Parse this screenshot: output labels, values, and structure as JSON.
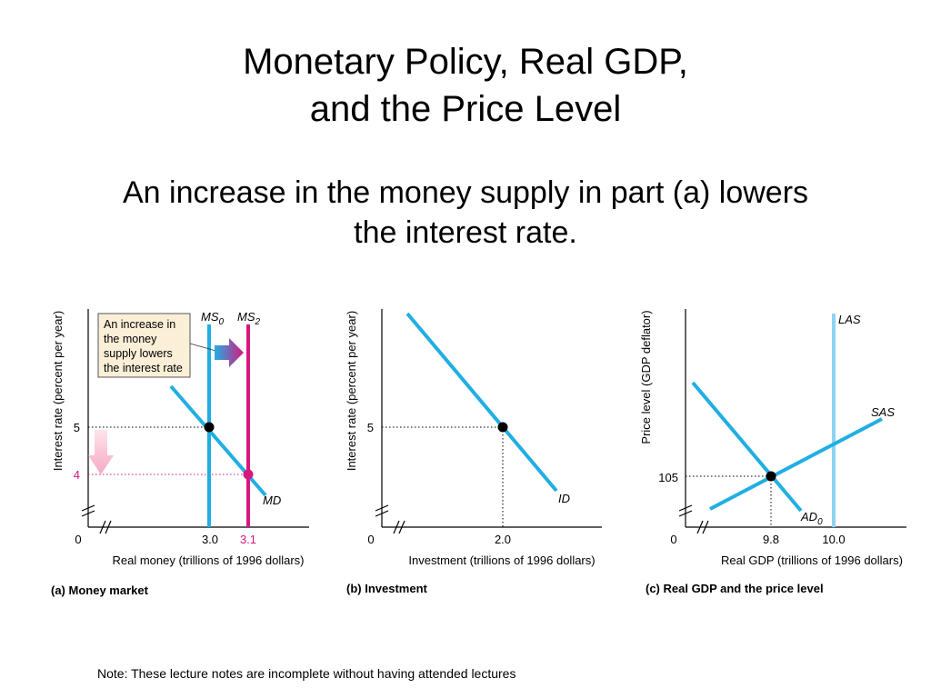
{
  "slide": {
    "title_line1": "Monetary Policy, Real GDP,",
    "title_line2": "and the Price Level",
    "subtitle_line1": "An increase in the money supply in part (a) lowers",
    "subtitle_line2": "the interest rate.",
    "note": "Note: These lecture notes are incomplete without having attended lectures"
  },
  "colors": {
    "blue": "#21aee3",
    "magenta": "#d6177f",
    "las_blue": "#8fd3f2",
    "axis": "#000000",
    "annotation_fill": "#fbefd8"
  },
  "chart_data": [
    {
      "type": "line",
      "caption": "(a) Money market",
      "xlabel": "Real money (trillions of 1996 dollars)",
      "ylabel": "Interest rate (percent per year)",
      "origin_label": "0",
      "x_ticks": [
        "3.0",
        "3.1"
      ],
      "y_ticks": [
        "5",
        "4"
      ],
      "series": [
        {
          "name": "MS0",
          "label_main": "MS",
          "label_sub": "0",
          "x": [
            3.0,
            3.0
          ]
        },
        {
          "name": "MS2",
          "label_main": "MS",
          "label_sub": "2",
          "x": [
            3.1,
            3.1
          ]
        },
        {
          "name": "MD",
          "label_main": "MD",
          "label_sub": "",
          "points": [
            [
              3.0,
              5
            ],
            [
              3.1,
              4
            ]
          ]
        }
      ],
      "equilibria": [
        {
          "x": 3.0,
          "y": 5
        },
        {
          "x": 3.1,
          "y": 4
        }
      ],
      "annotation": [
        "An increase in",
        "the money",
        "supply lowers",
        "the interest rate"
      ]
    },
    {
      "type": "line",
      "caption": "(b) Investment",
      "xlabel": "Investment (trillions of 1996 dollars)",
      "ylabel": "Interest rate (percent per year)",
      "origin_label": "0",
      "x_ticks": [
        "2.0"
      ],
      "y_ticks": [
        "5"
      ],
      "series": [
        {
          "name": "ID",
          "label_main": "ID",
          "label_sub": ""
        }
      ],
      "equilibria": [
        {
          "x": 2.0,
          "y": 5
        }
      ]
    },
    {
      "type": "line",
      "caption": "(c) Real GDP and the price level",
      "xlabel": "Real GDP (trillions of 1996 dollars)",
      "ylabel": "Price level (GDP deflator)",
      "origin_label": "0",
      "x_ticks": [
        "9.8",
        "10.0"
      ],
      "y_ticks": [
        "105"
      ],
      "series": [
        {
          "name": "LAS",
          "label_main": "LAS",
          "label_sub": "",
          "x": [
            10.0,
            10.0
          ]
        },
        {
          "name": "SAS",
          "label_main": "SAS",
          "label_sub": ""
        },
        {
          "name": "AD0",
          "label_main": "AD",
          "label_sub": "0"
        }
      ],
      "equilibria": [
        {
          "x": 9.8,
          "y": 105
        }
      ]
    }
  ]
}
